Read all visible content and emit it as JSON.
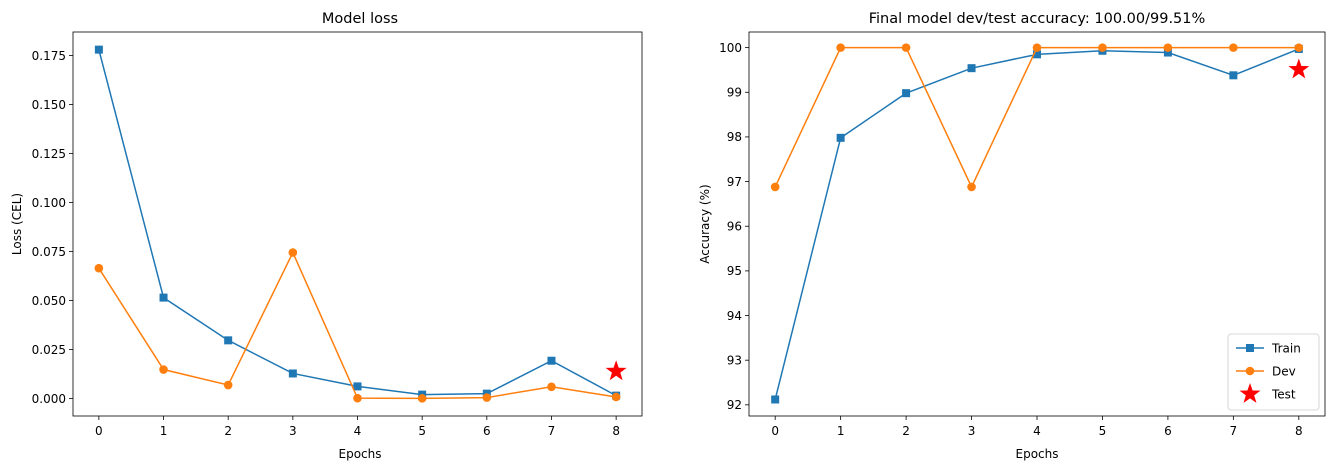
{
  "chart_data": [
    {
      "type": "line",
      "title": "Model loss",
      "xlabel": "Epochs",
      "ylabel": "Loss (CEL)",
      "xlim": [
        -0.4,
        8.4
      ],
      "ylim": [
        -0.0089,
        0.187
      ],
      "x_ticks": [
        0,
        1,
        2,
        3,
        4,
        5,
        6,
        7,
        8
      ],
      "y_ticks": [
        0.0,
        0.025,
        0.05,
        0.075,
        0.1,
        0.125,
        0.15,
        0.175
      ],
      "y_tick_labels": [
        "0.000",
        "0.025",
        "0.050",
        "0.075",
        "0.100",
        "0.125",
        "0.150",
        "0.175"
      ],
      "grid": false,
      "series": [
        {
          "color": "#1f77b4",
          "marker": "square",
          "x": [
            0,
            1,
            2,
            3,
            4,
            5,
            6,
            7,
            8
          ],
          "y": [
            0.178,
            0.0515,
            0.0297,
            0.0128,
            0.0062,
            0.002,
            0.0025,
            0.0193,
            0.0015
          ]
        },
        {
          "color": "#ff7f0e",
          "marker": "circle",
          "x": [
            0,
            1,
            2,
            3,
            4,
            5,
            6,
            7,
            8
          ],
          "y": [
            0.0665,
            0.0148,
            0.0069,
            0.0745,
            0.0002,
            0.0001,
            0.0005,
            0.006,
            0.0008
          ]
        },
        {
          "color": "#ff0000",
          "marker": "star",
          "x": [
            8
          ],
          "y": [
            0.0139
          ]
        }
      ]
    },
    {
      "type": "line",
      "title": "Final model dev/test accuracy: 100.00/99.51%",
      "xlabel": "Epochs",
      "ylabel": "Accuracy (%)",
      "xlim": [
        -0.4,
        8.4
      ],
      "ylim": [
        91.75,
        100.35
      ],
      "x_ticks": [
        0,
        1,
        2,
        3,
        4,
        5,
        6,
        7,
        8
      ],
      "y_ticks": [
        92,
        93,
        94,
        95,
        96,
        97,
        98,
        99,
        100
      ],
      "y_tick_labels": [
        "92",
        "93",
        "94",
        "95",
        "96",
        "97",
        "98",
        "99",
        "100"
      ],
      "grid": false,
      "legend": {
        "position": "lower-right",
        "entries": [
          "Train",
          "Dev",
          "Test"
        ]
      },
      "series": [
        {
          "name": "Train",
          "color": "#1f77b4",
          "marker": "square",
          "x": [
            0,
            1,
            2,
            3,
            4,
            5,
            6,
            7,
            8
          ],
          "y": [
            92.12,
            97.98,
            98.98,
            99.54,
            99.85,
            99.93,
            99.89,
            99.38,
            99.97
          ]
        },
        {
          "name": "Dev",
          "color": "#ff7f0e",
          "marker": "circle",
          "x": [
            0,
            1,
            2,
            3,
            4,
            5,
            6,
            7,
            8
          ],
          "y": [
            96.88,
            100.0,
            100.0,
            96.88,
            100.0,
            100.0,
            100.0,
            100.0,
            100.0
          ]
        },
        {
          "name": "Test",
          "color": "#ff0000",
          "marker": "star",
          "x": [
            8
          ],
          "y": [
            99.51
          ]
        }
      ]
    }
  ]
}
